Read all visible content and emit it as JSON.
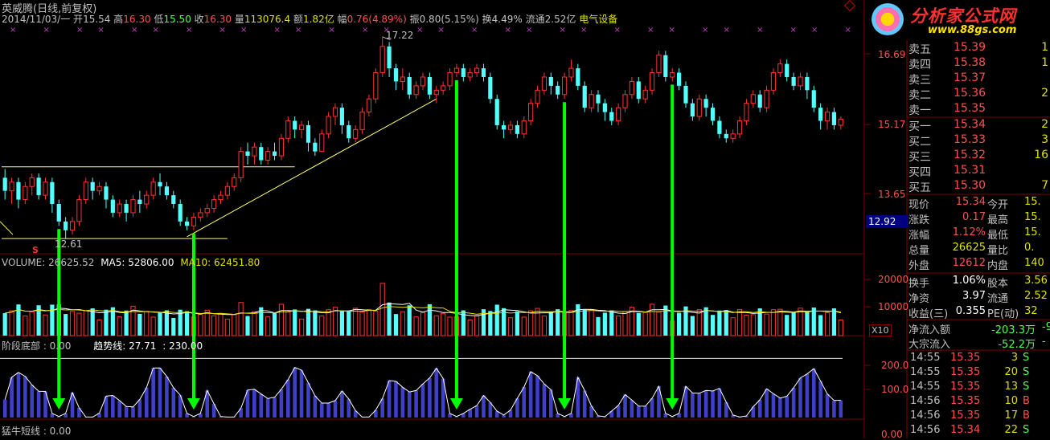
{
  "header": {
    "stock_name": "英威腾",
    "period": "(日线,前复权)",
    "date": "2014/11/03/一",
    "open_label": "开",
    "open": "15.54",
    "high_label": "高",
    "high": "16.30",
    "low_label": "低",
    "low": "15.50",
    "close_label": "收",
    "close": "16.30",
    "volume_label": "量",
    "volume": "113076.4",
    "amount_label": "额",
    "amount": "1.82亿",
    "change_label": "幅",
    "change": "0.76(4.89%)",
    "amplitude_label": "振",
    "amplitude": "0.80(5.15%)",
    "turnover_label": "换",
    "turnover": "4.49%",
    "float_label": "流通",
    "float": "2.52亿",
    "sector": "电气设备"
  },
  "logo": {
    "title": "分析家公式网",
    "url": "www.88gs.com"
  },
  "colors": {
    "up": "#ff3232",
    "down": "#54ffff",
    "ma5": "#ffffff",
    "ma10": "#e8e000",
    "trend": "#3f3fc8",
    "arrow": "#00ff00",
    "grid_border": "#800000"
  },
  "chart_data": [
    {
      "type": "candlestick",
      "title": "",
      "y_ticks": [
        "16.69",
        "15.17",
        "13.65"
      ],
      "ylim": [
        12.3,
        17.4
      ],
      "current_marker": "12.92",
      "annotations": {
        "high_label": "17.22",
        "low_label": "12.61",
        "signal_s": "S"
      },
      "x_marker_count": 30,
      "candles": [
        {
          "o": 14.0,
          "c": 13.7,
          "h": 14.2,
          "l": 13.5
        },
        {
          "o": 13.7,
          "c": 13.9,
          "h": 14.0,
          "l": 13.4
        },
        {
          "o": 13.9,
          "c": 13.5,
          "h": 14.0,
          "l": 13.3
        },
        {
          "o": 13.5,
          "c": 13.8,
          "h": 13.9,
          "l": 13.4
        },
        {
          "o": 13.8,
          "c": 14.0,
          "h": 14.1,
          "l": 13.6
        },
        {
          "o": 14.0,
          "c": 13.6,
          "h": 14.1,
          "l": 13.5
        },
        {
          "o": 13.6,
          "c": 13.9,
          "h": 14.0,
          "l": 13.5
        },
        {
          "o": 13.9,
          "c": 13.4,
          "h": 14.0,
          "l": 13.2
        },
        {
          "o": 13.4,
          "c": 13.0,
          "h": 13.5,
          "l": 12.9
        },
        {
          "o": 13.0,
          "c": 12.8,
          "h": 13.1,
          "l": 12.61
        },
        {
          "o": 12.8,
          "c": 13.0,
          "h": 13.1,
          "l": 12.7
        },
        {
          "o": 13.0,
          "c": 13.5,
          "h": 13.6,
          "l": 12.9
        },
        {
          "o": 13.5,
          "c": 13.9,
          "h": 14.0,
          "l": 13.4
        },
        {
          "o": 13.9,
          "c": 13.7,
          "h": 14.0,
          "l": 13.5
        },
        {
          "o": 13.7,
          "c": 13.8,
          "h": 13.9,
          "l": 13.6
        },
        {
          "o": 13.8,
          "c": 13.5,
          "h": 13.9,
          "l": 13.3
        },
        {
          "o": 13.5,
          "c": 13.2,
          "h": 13.6,
          "l": 13.1
        },
        {
          "o": 13.2,
          "c": 13.4,
          "h": 13.5,
          "l": 13.1
        },
        {
          "o": 13.4,
          "c": 13.2,
          "h": 13.5,
          "l": 13.0
        },
        {
          "o": 13.2,
          "c": 13.5,
          "h": 13.6,
          "l": 13.1
        },
        {
          "o": 13.5,
          "c": 13.4,
          "h": 13.7,
          "l": 13.2
        },
        {
          "o": 13.4,
          "c": 13.6,
          "h": 13.7,
          "l": 13.3
        },
        {
          "o": 13.6,
          "c": 13.9,
          "h": 14.0,
          "l": 13.5
        },
        {
          "o": 13.9,
          "c": 13.8,
          "h": 14.1,
          "l": 13.6
        },
        {
          "o": 13.8,
          "c": 13.6,
          "h": 13.9,
          "l": 13.5
        },
        {
          "o": 13.6,
          "c": 13.4,
          "h": 13.7,
          "l": 13.3
        },
        {
          "o": 13.4,
          "c": 13.0,
          "h": 13.5,
          "l": 12.9
        },
        {
          "o": 13.0,
          "c": 12.9,
          "h": 13.1,
          "l": 12.8
        },
        {
          "o": 12.9,
          "c": 13.1,
          "h": 13.2,
          "l": 12.8
        },
        {
          "o": 13.1,
          "c": 13.2,
          "h": 13.3,
          "l": 13.0
        },
        {
          "o": 13.2,
          "c": 13.3,
          "h": 13.4,
          "l": 13.1
        },
        {
          "o": 13.3,
          "c": 13.5,
          "h": 13.6,
          "l": 13.2
        },
        {
          "o": 13.5,
          "c": 13.6,
          "h": 13.7,
          "l": 13.4
        },
        {
          "o": 13.6,
          "c": 13.8,
          "h": 13.9,
          "l": 13.5
        },
        {
          "o": 13.8,
          "c": 14.0,
          "h": 14.1,
          "l": 13.7
        },
        {
          "o": 14.0,
          "c": 14.6,
          "h": 14.7,
          "l": 13.9
        },
        {
          "o": 14.6,
          "c": 14.5,
          "h": 14.8,
          "l": 14.3
        },
        {
          "o": 14.5,
          "c": 14.7,
          "h": 14.8,
          "l": 14.3
        },
        {
          "o": 14.7,
          "c": 14.4,
          "h": 14.8,
          "l": 14.3
        },
        {
          "o": 14.4,
          "c": 14.6,
          "h": 14.7,
          "l": 14.3
        },
        {
          "o": 14.6,
          "c": 14.5,
          "h": 14.8,
          "l": 14.4
        },
        {
          "o": 14.5,
          "c": 14.9,
          "h": 15.0,
          "l": 14.4
        },
        {
          "o": 14.9,
          "c": 15.3,
          "h": 15.4,
          "l": 14.8
        },
        {
          "o": 15.3,
          "c": 15.1,
          "h": 15.4,
          "l": 14.9
        },
        {
          "o": 15.1,
          "c": 15.2,
          "h": 15.3,
          "l": 14.9
        },
        {
          "o": 15.2,
          "c": 14.8,
          "h": 15.3,
          "l": 14.6
        },
        {
          "o": 14.8,
          "c": 14.6,
          "h": 14.9,
          "l": 14.5
        },
        {
          "o": 14.6,
          "c": 15.0,
          "h": 15.1,
          "l": 14.6
        },
        {
          "o": 15.0,
          "c": 15.4,
          "h": 15.5,
          "l": 14.9
        },
        {
          "o": 15.4,
          "c": 15.6,
          "h": 15.7,
          "l": 15.2
        },
        {
          "o": 15.6,
          "c": 15.2,
          "h": 15.7,
          "l": 15.0
        },
        {
          "o": 15.2,
          "c": 14.9,
          "h": 15.3,
          "l": 14.8
        },
        {
          "o": 14.9,
          "c": 15.1,
          "h": 15.2,
          "l": 14.8
        },
        {
          "o": 15.1,
          "c": 15.5,
          "h": 15.6,
          "l": 15.0
        },
        {
          "o": 15.5,
          "c": 15.8,
          "h": 15.9,
          "l": 15.4
        },
        {
          "o": 15.8,
          "c": 16.4,
          "h": 16.5,
          "l": 15.7
        },
        {
          "o": 16.4,
          "c": 17.0,
          "h": 17.22,
          "l": 16.3
        },
        {
          "o": 17.0,
          "c": 16.5,
          "h": 17.1,
          "l": 16.3
        },
        {
          "o": 16.5,
          "c": 16.2,
          "h": 16.6,
          "l": 16.0
        },
        {
          "o": 16.2,
          "c": 16.3,
          "h": 16.5,
          "l": 16.0
        },
        {
          "o": 16.3,
          "c": 15.9,
          "h": 16.4,
          "l": 15.8
        },
        {
          "o": 15.9,
          "c": 16.1,
          "h": 16.2,
          "l": 15.8
        },
        {
          "o": 16.1,
          "c": 16.3,
          "h": 16.4,
          "l": 16.0
        },
        {
          "o": 16.3,
          "c": 15.9,
          "h": 16.4,
          "l": 15.8
        },
        {
          "o": 15.9,
          "c": 16.0,
          "h": 16.1,
          "l": 15.7
        },
        {
          "o": 16.0,
          "c": 16.1,
          "h": 16.2,
          "l": 15.9
        },
        {
          "o": 16.1,
          "c": 16.4,
          "h": 16.5,
          "l": 16.0
        },
        {
          "o": 16.4,
          "c": 16.5,
          "h": 16.6,
          "l": 16.3
        },
        {
          "o": 16.5,
          "c": 16.3,
          "h": 16.6,
          "l": 16.2
        },
        {
          "o": 16.3,
          "c": 16.4,
          "h": 16.5,
          "l": 16.2
        },
        {
          "o": 16.4,
          "c": 16.5,
          "h": 16.6,
          "l": 16.3
        },
        {
          "o": 16.5,
          "c": 16.3,
          "h": 16.6,
          "l": 16.2
        },
        {
          "o": 16.3,
          "c": 15.8,
          "h": 16.4,
          "l": 15.7
        },
        {
          "o": 15.8,
          "c": 15.2,
          "h": 15.9,
          "l": 15.1
        },
        {
          "o": 15.2,
          "c": 15.1,
          "h": 15.3,
          "l": 14.9
        },
        {
          "o": 15.1,
          "c": 15.2,
          "h": 15.3,
          "l": 15.0
        },
        {
          "o": 15.2,
          "c": 15.0,
          "h": 15.3,
          "l": 14.9
        },
        {
          "o": 15.0,
          "c": 15.3,
          "h": 15.4,
          "l": 14.9
        },
        {
          "o": 15.3,
          "c": 15.7,
          "h": 15.8,
          "l": 15.2
        },
        {
          "o": 15.7,
          "c": 16.0,
          "h": 16.1,
          "l": 15.6
        },
        {
          "o": 16.0,
          "c": 16.3,
          "h": 16.4,
          "l": 15.9
        },
        {
          "o": 16.3,
          "c": 16.1,
          "h": 16.4,
          "l": 15.9
        },
        {
          "o": 16.1,
          "c": 15.9,
          "h": 16.2,
          "l": 15.8
        },
        {
          "o": 15.9,
          "c": 16.3,
          "h": 16.4,
          "l": 15.8
        },
        {
          "o": 16.3,
          "c": 16.5,
          "h": 16.7,
          "l": 16.2
        },
        {
          "o": 16.5,
          "c": 16.1,
          "h": 16.6,
          "l": 16.0
        },
        {
          "o": 16.1,
          "c": 15.6,
          "h": 16.2,
          "l": 15.5
        },
        {
          "o": 15.6,
          "c": 15.9,
          "h": 16.0,
          "l": 15.5
        },
        {
          "o": 15.9,
          "c": 15.7,
          "h": 16.0,
          "l": 15.5
        },
        {
          "o": 15.7,
          "c": 15.5,
          "h": 15.8,
          "l": 15.3
        },
        {
          "o": 15.5,
          "c": 15.3,
          "h": 15.6,
          "l": 15.2
        },
        {
          "o": 15.3,
          "c": 15.6,
          "h": 15.7,
          "l": 15.2
        },
        {
          "o": 15.6,
          "c": 15.9,
          "h": 16.0,
          "l": 15.5
        },
        {
          "o": 15.9,
          "c": 16.2,
          "h": 16.3,
          "l": 15.8
        },
        {
          "o": 16.2,
          "c": 15.8,
          "h": 16.3,
          "l": 15.7
        },
        {
          "o": 15.8,
          "c": 16.0,
          "h": 16.1,
          "l": 15.7
        },
        {
          "o": 16.0,
          "c": 16.4,
          "h": 16.5,
          "l": 15.9
        },
        {
          "o": 16.4,
          "c": 16.8,
          "h": 16.9,
          "l": 16.3
        },
        {
          "o": 16.8,
          "c": 16.3,
          "h": 16.9,
          "l": 16.2
        },
        {
          "o": 16.3,
          "c": 16.4,
          "h": 16.5,
          "l": 16.2
        },
        {
          "o": 16.4,
          "c": 16.1,
          "h": 16.5,
          "l": 16.0
        },
        {
          "o": 16.1,
          "c": 15.7,
          "h": 16.2,
          "l": 15.6
        },
        {
          "o": 15.7,
          "c": 15.4,
          "h": 15.8,
          "l": 15.3
        },
        {
          "o": 15.4,
          "c": 15.8,
          "h": 15.9,
          "l": 15.3
        },
        {
          "o": 15.8,
          "c": 15.6,
          "h": 15.9,
          "l": 15.4
        },
        {
          "o": 15.6,
          "c": 15.3,
          "h": 15.7,
          "l": 15.2
        },
        {
          "o": 15.3,
          "c": 15.0,
          "h": 15.4,
          "l": 14.9
        },
        {
          "o": 15.0,
          "c": 14.9,
          "h": 15.1,
          "l": 14.8
        },
        {
          "o": 14.9,
          "c": 15.0,
          "h": 15.1,
          "l": 14.8
        },
        {
          "o": 15.0,
          "c": 15.3,
          "h": 15.4,
          "l": 14.9
        },
        {
          "o": 15.3,
          "c": 15.7,
          "h": 15.8,
          "l": 15.2
        },
        {
          "o": 15.7,
          "c": 15.9,
          "h": 16.0,
          "l": 15.6
        },
        {
          "o": 15.9,
          "c": 15.6,
          "h": 16.0,
          "l": 15.5
        },
        {
          "o": 15.6,
          "c": 16.0,
          "h": 16.1,
          "l": 15.5
        },
        {
          "o": 16.0,
          "c": 16.4,
          "h": 16.5,
          "l": 15.9
        },
        {
          "o": 16.4,
          "c": 16.6,
          "h": 16.7,
          "l": 16.3
        },
        {
          "o": 16.6,
          "c": 16.3,
          "h": 16.7,
          "l": 16.2
        },
        {
          "o": 16.3,
          "c": 16.1,
          "h": 16.4,
          "l": 16.0
        },
        {
          "o": 16.1,
          "c": 16.3,
          "h": 16.4,
          "l": 16.0
        },
        {
          "o": 16.3,
          "c": 16.0,
          "h": 16.4,
          "l": 15.8
        },
        {
          "o": 16.0,
          "c": 15.6,
          "h": 16.1,
          "l": 15.5
        },
        {
          "o": 15.6,
          "c": 15.3,
          "h": 15.7,
          "l": 15.1
        },
        {
          "o": 15.3,
          "c": 15.5,
          "h": 15.6,
          "l": 15.1
        },
        {
          "o": 15.5,
          "c": 15.2,
          "h": 15.6,
          "l": 15.1
        },
        {
          "o": 15.2,
          "c": 15.34,
          "h": 15.4,
          "l": 15.1
        }
      ],
      "support_lines": [
        {
          "y": 14.25,
          "from": 0,
          "to": 43
        },
        {
          "y": 12.61,
          "from": 0,
          "to": 33
        }
      ],
      "trend_line": {
        "from": {
          "i": 27,
          "y": 12.65
        },
        "to": {
          "i": 64,
          "y": 15.8
        }
      }
    },
    {
      "type": "bar",
      "title": "VOLUME",
      "legend": {
        "volume": "VOLUME: 26625.52",
        "ma5": "MA5: 52806.00",
        "ma10": "MA10: 62451.80"
      },
      "y_ticks": [
        "20000",
        "10000"
      ],
      "ylim": [
        0,
        28000
      ],
      "unit_label": "X10"
    },
    {
      "type": "bar",
      "title": "阶段底部",
      "legend": {
        "stage_bottom": "阶段底部 : 0.00",
        "trend": "趋势线: 27.71",
        "level": ": 230.00"
      },
      "y_ticks": [
        "200.0",
        "100.0",
        "0.00"
      ],
      "ylim": [
        0,
        250
      ],
      "level_value": 230,
      "bottom_label": "猛牛短线 : 0.00",
      "arrow_bar_indices": [
        8,
        28,
        67,
        83,
        99
      ]
    }
  ],
  "order_book": {
    "asks": [
      {
        "label": "卖五",
        "price": "15.39",
        "qty": "1"
      },
      {
        "label": "卖四",
        "price": "15.38",
        "qty": "1"
      },
      {
        "label": "卖三",
        "price": "15.37",
        "qty": ""
      },
      {
        "label": "卖二",
        "price": "15.36",
        "qty": "2"
      },
      {
        "label": "卖一",
        "price": "15.35",
        "qty": ""
      }
    ],
    "bids": [
      {
        "label": "买一",
        "price": "15.34",
        "qty": "2"
      },
      {
        "label": "买二",
        "price": "15.33",
        "qty": "3"
      },
      {
        "label": "买三",
        "price": "15.32",
        "qty": "16"
      },
      {
        "label": "买四",
        "price": "15.31",
        "qty": ""
      },
      {
        "label": "买五",
        "price": "15.30",
        "qty": "7"
      }
    ]
  },
  "quote": [
    {
      "l1": "现价",
      "v1": "15.34",
      "c1": "#ff5050",
      "l2": "今开",
      "v2": "15."
    },
    {
      "l1": "涨跌",
      "v1": "0.17",
      "c1": "#ff5050",
      "l2": "最高",
      "v2": "15."
    },
    {
      "l1": "涨幅",
      "v1": "1.12%",
      "c1": "#ff5050",
      "l2": "最低",
      "v2": "15."
    },
    {
      "l1": "总量",
      "v1": "26625",
      "c1": "#e0e000",
      "l2": "量比",
      "v2": "0."
    },
    {
      "l1": "外盘",
      "v1": "12612",
      "c1": "#ff5050",
      "l2": "内盘",
      "v2": "140"
    }
  ],
  "quote2": [
    {
      "l1": "换手",
      "v1": "1.06%",
      "c1": "#ffffff",
      "l2": "股本",
      "v2": "3.56"
    },
    {
      "l1": "净资",
      "v1": "3.97",
      "c1": "#ffffff",
      "l2": "流通",
      "v2": "2.52"
    },
    {
      "l1": "收益(三)",
      "v1": "0.355",
      "c1": "#ffffff",
      "l2": "PE(动)",
      "v2": "32"
    }
  ],
  "flows": [
    {
      "label": "净流入额",
      "value": "-203.3万",
      "tail": "-9"
    },
    {
      "label": "大宗流入",
      "value": "-52.2万",
      "tail": "-"
    }
  ],
  "ticks": [
    {
      "time": "14:55",
      "price": "15.35",
      "vol": "3",
      "side": "S"
    },
    {
      "time": "14:55",
      "price": "15.35",
      "vol": "20",
      "side": "S"
    },
    {
      "time": "14:55",
      "price": "15.35",
      "vol": "13",
      "side": "S"
    },
    {
      "time": "14:56",
      "price": "15.35",
      "vol": "10",
      "side": "B"
    },
    {
      "time": "14:56",
      "price": "15.35",
      "vol": "17",
      "side": "B"
    },
    {
      "time": "14:56",
      "price": "15.34",
      "vol": "22",
      "side": "S"
    }
  ]
}
